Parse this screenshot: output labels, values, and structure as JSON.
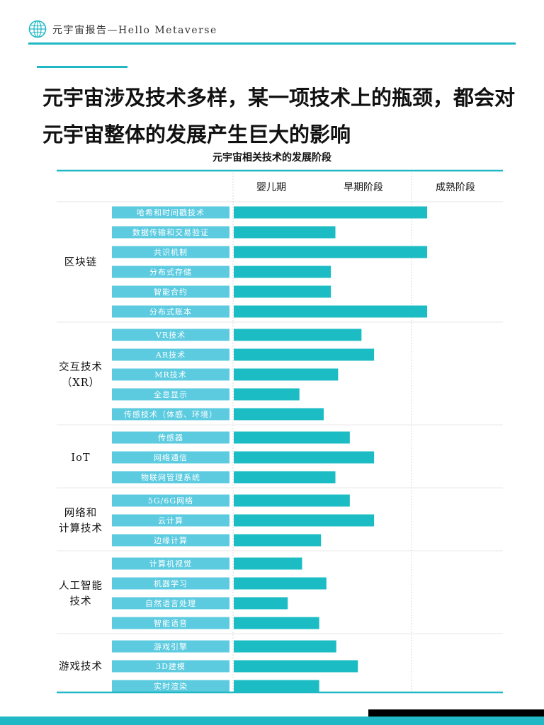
{
  "header": {
    "text": "元宇宙报告—Hello Metaverse"
  },
  "headline": "元宇宙涉及技术多样，某一项技术上的瓶颈，都会对元宇宙整体的发展产生巨大的影响",
  "colors": {
    "accent": "#1fb8c4",
    "label_fill": "#5ccbe0",
    "bar_fill": "#1cbcc4"
  },
  "chart_data": {
    "type": "bar",
    "title": "元宇宙相关技术的发展阶段",
    "orientation": "horizontal",
    "stages": [
      "婴儿期",
      "早期阶段",
      "成熟阶段"
    ],
    "value_range": [
      0,
      3
    ],
    "groups": [
      {
        "name": "区块链",
        "items": [
          {
            "label": "哈希和时间戳技术",
            "value": 2.15
          },
          {
            "label": "数据传输和交易验证",
            "value": 1.13
          },
          {
            "label": "共识机制",
            "value": 2.15
          },
          {
            "label": "分布式存储",
            "value": 1.08
          },
          {
            "label": "智能合约",
            "value": 1.08
          },
          {
            "label": "分布式账本",
            "value": 2.15
          }
        ]
      },
      {
        "name": "交互技术（XR）",
        "items": [
          {
            "label": "VR技术",
            "value": 1.42
          },
          {
            "label": "AR技术",
            "value": 1.56
          },
          {
            "label": "MR技术",
            "value": 1.16
          },
          {
            "label": "全息显示",
            "value": 0.73
          },
          {
            "label": "传感技术（体感、环境）",
            "value": 1.0
          }
        ]
      },
      {
        "name": "IoT",
        "items": [
          {
            "label": "传感器",
            "value": 1.29
          },
          {
            "label": "网络通信",
            "value": 1.56
          },
          {
            "label": "物联网管理系统",
            "value": 1.13
          }
        ]
      },
      {
        "name": "网络和计算技术",
        "items": [
          {
            "label": "5G/6G网络",
            "value": 1.29
          },
          {
            "label": "云计算",
            "value": 1.56
          },
          {
            "label": "边缘计算",
            "value": 0.97
          }
        ]
      },
      {
        "name": "人工智能技术",
        "items": [
          {
            "label": "计算机视觉",
            "value": 0.76
          },
          {
            "label": "机器学习",
            "value": 1.03
          },
          {
            "label": "自然语言处理",
            "value": 0.6
          },
          {
            "label": "智能语音",
            "value": 0.95
          }
        ]
      },
      {
        "name": "游戏技术",
        "items": [
          {
            "label": "游戏引擎",
            "value": 1.14
          },
          {
            "label": "3D建模",
            "value": 1.38
          },
          {
            "label": "实时渲染",
            "value": 0.95
          }
        ]
      }
    ]
  }
}
